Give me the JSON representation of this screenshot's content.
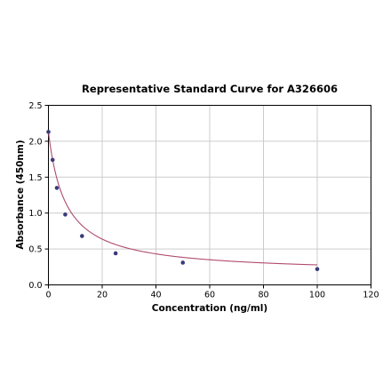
{
  "chart_data": {
    "type": "scatter",
    "title": "Representative Standard Curve for A326606",
    "xlabel": "Concentration (ng/ml)",
    "ylabel": "Absorbance (450nm)",
    "xlim": [
      0,
      120
    ],
    "ylim": [
      0.0,
      2.5
    ],
    "xticks": [
      0,
      20,
      40,
      60,
      80,
      100,
      120
    ],
    "yticks": [
      0.0,
      0.5,
      1.0,
      1.5,
      2.0,
      2.5
    ],
    "xtick_labels": [
      "0",
      "20",
      "40",
      "60",
      "80",
      "100",
      "120"
    ],
    "ytick_labels": [
      "0.0",
      "0.5",
      "1.0",
      "1.5",
      "2.0",
      "2.5"
    ],
    "grid": true,
    "series": [
      {
        "points": [
          {
            "x": 0,
            "y": 2.13
          },
          {
            "x": 1.56,
            "y": 1.74
          },
          {
            "x": 3.13,
            "y": 1.35
          },
          {
            "x": 6.25,
            "y": 0.98
          },
          {
            "x": 12.5,
            "y": 0.68
          },
          {
            "x": 25,
            "y": 0.44
          },
          {
            "x": 50,
            "y": 0.31
          },
          {
            "x": 100,
            "y": 0.22
          }
        ],
        "fit_curve": {
          "type": "4PL",
          "a": 2.13,
          "b": 1.0,
          "c": 6.4,
          "d": 0.16,
          "x_range": [
            0,
            100
          ]
        }
      }
    ],
    "colors": {
      "marker": "#3a3a7a",
      "curve": "#b04a6e",
      "grid": "#cccccc",
      "axis": "#000000"
    }
  }
}
